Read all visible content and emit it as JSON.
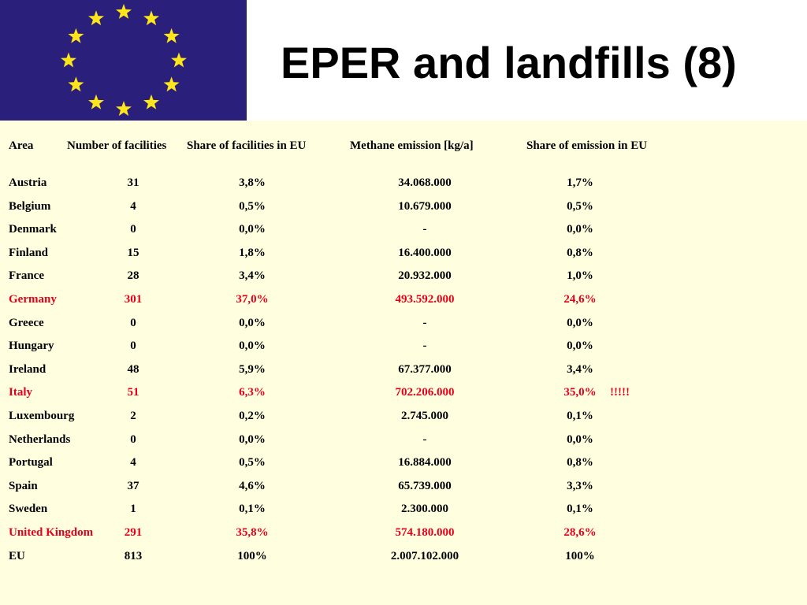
{
  "title": "EPER and landfills (8)",
  "colors": {
    "flag_blue": "#2a1f7a",
    "star_yellow": "#ffe61a",
    "panel_bg": "#ffffe0",
    "highlight_red": "#e4001b"
  },
  "header": {
    "area": "Area",
    "facilities": "Number of facilities",
    "share_facilities": "Share of facilities in EU",
    "methane": "Methane emission [kg/a]",
    "share_emission": "Share of emission in EU"
  },
  "rows": [
    {
      "area": "Austria",
      "facilities": "31",
      "share_facilities": "3,8%",
      "methane": "34.068.000",
      "share_emission": "1,7%",
      "note": "",
      "highlight": false
    },
    {
      "area": "Belgium",
      "facilities": "4",
      "share_facilities": "0,5%",
      "methane": "10.679.000",
      "share_emission": "0,5%",
      "note": "",
      "highlight": false
    },
    {
      "area": "Denmark",
      "facilities": "0",
      "share_facilities": "0,0%",
      "methane": "-",
      "share_emission": "0,0%",
      "note": "",
      "highlight": false
    },
    {
      "area": "Finland",
      "facilities": "15",
      "share_facilities": "1,8%",
      "methane": "16.400.000",
      "share_emission": "0,8%",
      "note": "",
      "highlight": false
    },
    {
      "area": "France",
      "facilities": "28",
      "share_facilities": "3,4%",
      "methane": "20.932.000",
      "share_emission": "1,0%",
      "note": "",
      "highlight": false
    },
    {
      "area": "Germany",
      "facilities": "301",
      "share_facilities": "37,0%",
      "methane": "493.592.000",
      "share_emission": "24,6%",
      "note": "",
      "highlight": true
    },
    {
      "area": "Greece",
      "facilities": "0",
      "share_facilities": "0,0%",
      "methane": "-",
      "share_emission": "0,0%",
      "note": "",
      "highlight": false
    },
    {
      "area": "Hungary",
      "facilities": "0",
      "share_facilities": "0,0%",
      "methane": "-",
      "share_emission": "0,0%",
      "note": "",
      "highlight": false
    },
    {
      "area": "Ireland",
      "facilities": "48",
      "share_facilities": "5,9%",
      "methane": "67.377.000",
      "share_emission": "3,4%",
      "note": "",
      "highlight": false
    },
    {
      "area": "Italy",
      "facilities": "51",
      "share_facilities": "6,3%",
      "methane": "702.206.000",
      "share_emission": "35,0%",
      "note": "!!!!!",
      "highlight": true
    },
    {
      "area": "Luxembourg",
      "facilities": "2",
      "share_facilities": "0,2%",
      "methane": "2.745.000",
      "share_emission": "0,1%",
      "note": "",
      "highlight": false
    },
    {
      "area": "Netherlands",
      "facilities": "0",
      "share_facilities": "0,0%",
      "methane": "-",
      "share_emission": "0,0%",
      "note": "",
      "highlight": false
    },
    {
      "area": "Portugal",
      "facilities": "4",
      "share_facilities": "0,5%",
      "methane": "16.884.000",
      "share_emission": "0,8%",
      "note": "",
      "highlight": false
    },
    {
      "area": "Spain",
      "facilities": "37",
      "share_facilities": "4,6%",
      "methane": "65.739.000",
      "share_emission": "3,3%",
      "note": "",
      "highlight": false
    },
    {
      "area": "Sweden",
      "facilities": "1",
      "share_facilities": "0,1%",
      "methane": "2.300.000",
      "share_emission": "0,1%",
      "note": "",
      "highlight": false
    },
    {
      "area": "United Kingdom",
      "facilities": "291",
      "share_facilities": "35,8%",
      "methane": "574.180.000",
      "share_emission": "28,6%",
      "note": "",
      "highlight": true
    },
    {
      "area": "EU",
      "facilities": "813",
      "share_facilities": "100%",
      "methane": "2.007.102.000",
      "share_emission": "100%",
      "note": "",
      "highlight": false
    }
  ]
}
